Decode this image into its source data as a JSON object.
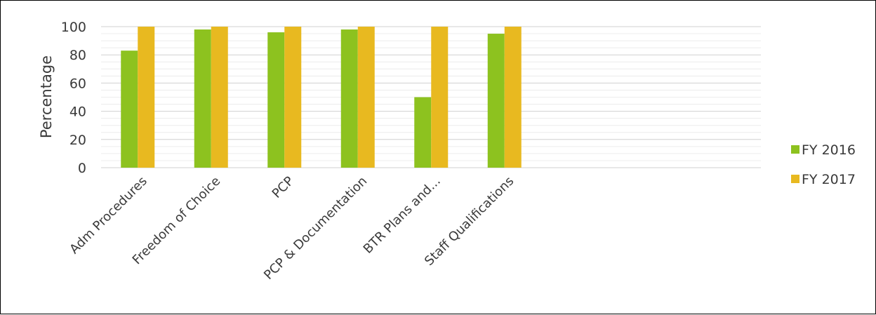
{
  "chart_data": {
    "type": "bar",
    "ylabel": "Percentage",
    "xlabel": "",
    "ylim": [
      0,
      100
    ],
    "yticks": [
      0,
      20,
      40,
      60,
      80,
      100
    ],
    "grid": true,
    "legend_position": "right",
    "categories": [
      "Adm Procedures",
      "Freedom of Choice",
      "PCP",
      "PCP & Documentation",
      "BTR Plans and...",
      "Staff Qualifications"
    ],
    "series": [
      {
        "name": "FY 2016",
        "color": "#8dc21f",
        "values": [
          83,
          98,
          96,
          98,
          50,
          95
        ]
      },
      {
        "name": "FY 2017",
        "color": "#e8b920",
        "values": [
          100,
          100,
          100,
          100,
          100,
          100
        ]
      }
    ]
  }
}
